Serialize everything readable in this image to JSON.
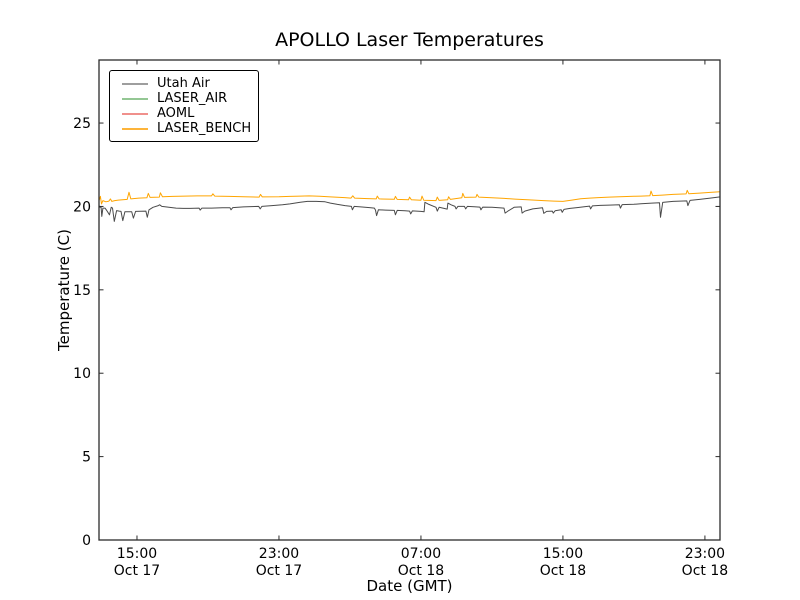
{
  "chart_data": {
    "type": "line",
    "title": "APOLLO Laser Temperatures",
    "xlabel": "Date (GMT)",
    "ylabel": "Temperature (C)",
    "grid": false,
    "legend_position": "upper-left",
    "ylim": [
      0,
      28.78
    ],
    "yticks": [
      0,
      5,
      10,
      15,
      20,
      25
    ],
    "x_unit": "hours since Oct 17 00:00 GMT",
    "xlim": [
      12.86,
      47.85
    ],
    "xticks": [
      {
        "t": 15,
        "time": "15:00",
        "date": "Oct 17"
      },
      {
        "t": 23,
        "time": "23:00",
        "date": "Oct 17"
      },
      {
        "t": 31,
        "time": "07:00",
        "date": "Oct 18"
      },
      {
        "t": 39,
        "time": "15:00",
        "date": "Oct 18"
      },
      {
        "t": 47,
        "time": "23:00",
        "date": "Oct 18"
      }
    ],
    "series": [
      {
        "name": "Utah Air",
        "color": "#4a4a4a",
        "legend_color": "#9e9e9e",
        "points": [
          [
            12.86,
            20.05
          ],
          [
            12.92,
            19.95
          ],
          [
            12.98,
            19.95
          ],
          [
            13.02,
            19.4
          ],
          [
            13.08,
            19.9
          ],
          [
            13.2,
            19.9
          ],
          [
            13.3,
            19.75
          ],
          [
            13.45,
            19.5
          ],
          [
            13.55,
            19.95
          ],
          [
            13.62,
            19.9
          ],
          [
            13.72,
            19.1
          ],
          [
            13.85,
            19.75
          ],
          [
            14.0,
            19.72
          ],
          [
            14.1,
            19.7
          ],
          [
            14.2,
            19.15
          ],
          [
            14.32,
            19.68
          ],
          [
            14.7,
            19.68
          ],
          [
            14.8,
            19.3
          ],
          [
            14.92,
            19.7
          ],
          [
            15.5,
            19.72
          ],
          [
            15.58,
            19.35
          ],
          [
            15.68,
            19.8
          ],
          [
            15.9,
            19.95
          ],
          [
            16.2,
            20.05
          ],
          [
            16.28,
            20.1
          ],
          [
            16.4,
            20.0
          ],
          [
            16.8,
            19.95
          ],
          [
            17.2,
            19.9
          ],
          [
            17.6,
            19.88
          ],
          [
            18.0,
            19.88
          ],
          [
            18.5,
            19.9
          ],
          [
            18.56,
            19.78
          ],
          [
            18.66,
            19.9
          ],
          [
            19.2,
            19.9
          ],
          [
            19.8,
            19.92
          ],
          [
            20.24,
            19.92
          ],
          [
            20.3,
            19.8
          ],
          [
            20.4,
            19.93
          ],
          [
            21.0,
            19.97
          ],
          [
            21.86,
            20.0
          ],
          [
            21.94,
            19.85
          ],
          [
            22.04,
            20.0
          ],
          [
            22.6,
            20.05
          ],
          [
            23.2,
            20.1
          ],
          [
            23.62,
            20.15
          ],
          [
            24.2,
            20.25
          ],
          [
            24.6,
            20.3
          ],
          [
            25.1,
            20.3
          ],
          [
            25.6,
            20.28
          ],
          [
            25.9,
            20.2
          ],
          [
            26.3,
            20.12
          ],
          [
            26.72,
            20.05
          ],
          [
            27.08,
            20.0
          ],
          [
            27.14,
            19.8
          ],
          [
            27.24,
            20.0
          ],
          [
            27.6,
            19.97
          ],
          [
            28.1,
            19.93
          ],
          [
            28.38,
            19.9
          ],
          [
            28.44,
            19.78
          ],
          [
            28.5,
            19.45
          ],
          [
            28.6,
            19.8
          ],
          [
            29.0,
            19.78
          ],
          [
            29.5,
            19.76
          ],
          [
            29.56,
            19.5
          ],
          [
            29.66,
            19.76
          ],
          [
            30.1,
            19.74
          ],
          [
            30.36,
            19.72
          ],
          [
            30.42,
            19.55
          ],
          [
            30.52,
            19.73
          ],
          [
            31.0,
            19.7
          ],
          [
            31.18,
            19.68
          ],
          [
            31.22,
            20.25
          ],
          [
            31.45,
            20.12
          ],
          [
            31.85,
            19.95
          ],
          [
            31.92,
            19.72
          ],
          [
            32.02,
            19.95
          ],
          [
            32.3,
            19.88
          ],
          [
            32.48,
            19.84
          ],
          [
            32.52,
            20.2
          ],
          [
            32.7,
            20.1
          ],
          [
            32.92,
            20.0
          ],
          [
            32.98,
            19.85
          ],
          [
            33.08,
            20.0
          ],
          [
            33.45,
            20.0
          ],
          [
            33.52,
            19.85
          ],
          [
            33.62,
            20.0
          ],
          [
            34.0,
            19.98
          ],
          [
            34.32,
            19.96
          ],
          [
            34.38,
            19.8
          ],
          [
            34.48,
            19.96
          ],
          [
            35.0,
            19.95
          ],
          [
            35.4,
            19.92
          ],
          [
            35.68,
            19.9
          ],
          [
            35.74,
            19.6
          ],
          [
            35.9,
            19.72
          ],
          [
            36.25,
            19.95
          ],
          [
            36.65,
            19.97
          ],
          [
            36.7,
            19.6
          ],
          [
            36.85,
            19.72
          ],
          [
            37.3,
            19.85
          ],
          [
            37.85,
            19.92
          ],
          [
            37.92,
            19.58
          ],
          [
            38.08,
            19.7
          ],
          [
            38.4,
            19.72
          ],
          [
            38.46,
            19.6
          ],
          [
            38.56,
            19.74
          ],
          [
            38.9,
            19.8
          ],
          [
            38.96,
            19.65
          ],
          [
            39.06,
            19.82
          ],
          [
            39.4,
            19.88
          ],
          [
            39.8,
            19.93
          ],
          [
            40.2,
            19.98
          ],
          [
            40.5,
            20.02
          ],
          [
            40.56,
            19.85
          ],
          [
            40.66,
            20.03
          ],
          [
            41.1,
            20.06
          ],
          [
            41.6,
            20.08
          ],
          [
            42.18,
            20.1
          ],
          [
            42.24,
            19.9
          ],
          [
            42.34,
            20.11
          ],
          [
            43.0,
            20.13
          ],
          [
            43.4,
            20.16
          ],
          [
            44.0,
            20.2
          ],
          [
            44.44,
            20.22
          ],
          [
            44.5,
            19.35
          ],
          [
            44.62,
            20.24
          ],
          [
            45.2,
            20.3
          ],
          [
            45.98,
            20.33
          ],
          [
            46.04,
            20.05
          ],
          [
            46.16,
            20.36
          ],
          [
            46.7,
            20.42
          ],
          [
            47.3,
            20.5
          ],
          [
            47.85,
            20.57
          ]
        ]
      },
      {
        "name": "LASER_AIR",
        "color": "#7fbf7f",
        "legend_color": "#94c794",
        "points": []
      },
      {
        "name": "AOML",
        "color": "#f08080",
        "legend_color": "#f0908c",
        "points": []
      },
      {
        "name": "LASER_BENCH",
        "color": "#ffa500",
        "legend_color": "#fdb43a",
        "points": [
          [
            12.86,
            20.35
          ],
          [
            12.94,
            20.6
          ],
          [
            13.0,
            20.15
          ],
          [
            13.08,
            20.35
          ],
          [
            13.25,
            20.28
          ],
          [
            13.42,
            20.32
          ],
          [
            13.5,
            20.45
          ],
          [
            13.58,
            20.3
          ],
          [
            13.75,
            20.35
          ],
          [
            13.95,
            20.38
          ],
          [
            14.45,
            20.42
          ],
          [
            14.55,
            20.85
          ],
          [
            14.65,
            20.45
          ],
          [
            15.1,
            20.5
          ],
          [
            15.56,
            20.52
          ],
          [
            15.64,
            20.78
          ],
          [
            15.74,
            20.54
          ],
          [
            16.26,
            20.56
          ],
          [
            16.32,
            20.82
          ],
          [
            16.44,
            20.58
          ],
          [
            17.0,
            20.6
          ],
          [
            17.7,
            20.62
          ],
          [
            18.4,
            20.63
          ],
          [
            19.2,
            20.63
          ],
          [
            19.28,
            20.76
          ],
          [
            19.38,
            20.62
          ],
          [
            20.2,
            20.6
          ],
          [
            21.0,
            20.58
          ],
          [
            21.88,
            20.56
          ],
          [
            21.96,
            20.72
          ],
          [
            22.06,
            20.57
          ],
          [
            23.0,
            20.58
          ],
          [
            23.6,
            20.6
          ],
          [
            24.2,
            20.62
          ],
          [
            24.7,
            20.63
          ],
          [
            25.3,
            20.61
          ],
          [
            25.9,
            20.57
          ],
          [
            26.7,
            20.53
          ],
          [
            27.06,
            20.5
          ],
          [
            27.16,
            20.64
          ],
          [
            27.26,
            20.5
          ],
          [
            28.0,
            20.47
          ],
          [
            28.48,
            20.45
          ],
          [
            28.54,
            20.62
          ],
          [
            28.64,
            20.45
          ],
          [
            29.5,
            20.43
          ],
          [
            29.56,
            20.6
          ],
          [
            29.66,
            20.42
          ],
          [
            30.3,
            20.4
          ],
          [
            30.36,
            20.56
          ],
          [
            30.46,
            20.4
          ],
          [
            31.0,
            20.37
          ],
          [
            31.06,
            20.62
          ],
          [
            31.16,
            20.37
          ],
          [
            31.85,
            20.35
          ],
          [
            31.92,
            20.56
          ],
          [
            32.02,
            20.36
          ],
          [
            32.5,
            20.4
          ],
          [
            32.56,
            20.58
          ],
          [
            32.66,
            20.42
          ],
          [
            33.3,
            20.52
          ],
          [
            33.36,
            20.78
          ],
          [
            33.46,
            20.54
          ],
          [
            34.1,
            20.56
          ],
          [
            34.16,
            20.72
          ],
          [
            34.26,
            20.56
          ],
          [
            35.0,
            20.52
          ],
          [
            35.7,
            20.48
          ],
          [
            36.3,
            20.44
          ],
          [
            37.0,
            20.4
          ],
          [
            37.9,
            20.35
          ],
          [
            38.5,
            20.32
          ],
          [
            39.0,
            20.3
          ],
          [
            39.5,
            20.38
          ],
          [
            40.0,
            20.46
          ],
          [
            40.5,
            20.5
          ],
          [
            41.0,
            20.53
          ],
          [
            41.6,
            20.56
          ],
          [
            42.2,
            20.58
          ],
          [
            43.0,
            20.61
          ],
          [
            43.4,
            20.62
          ],
          [
            43.9,
            20.64
          ],
          [
            43.96,
            20.92
          ],
          [
            44.06,
            20.65
          ],
          [
            44.6,
            20.68
          ],
          [
            45.2,
            20.72
          ],
          [
            45.94,
            20.75
          ],
          [
            46.0,
            20.96
          ],
          [
            46.1,
            20.76
          ],
          [
            46.7,
            20.8
          ],
          [
            47.3,
            20.84
          ],
          [
            47.85,
            20.88
          ]
        ]
      }
    ],
    "colors": {
      "spine": "#2b2b2b",
      "text": "#000000",
      "background": "#ffffff"
    }
  }
}
